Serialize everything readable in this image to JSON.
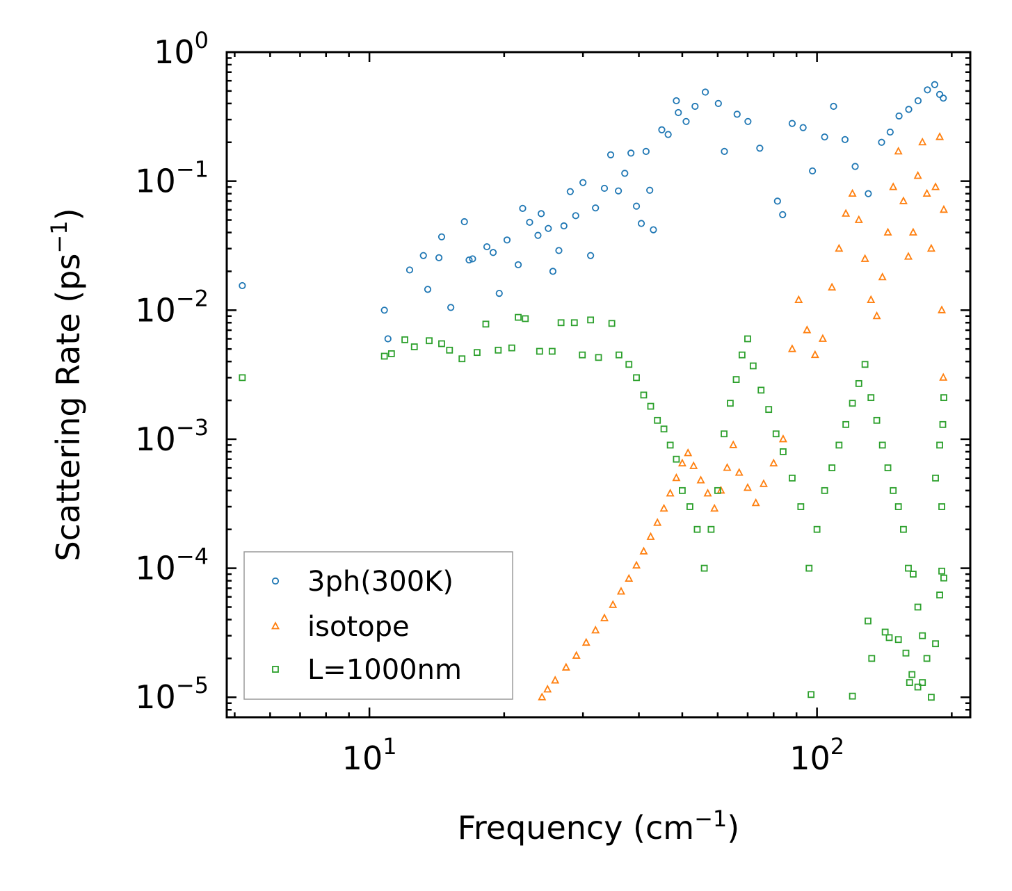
{
  "chart_data": {
    "type": "scatter",
    "xscale": "log",
    "yscale": "log",
    "xlim": [
      4.8,
      220
    ],
    "ylim": [
      7e-06,
      1.0
    ],
    "xlabel": {
      "base": "Frequency (cm",
      "sup": "−1",
      "tail": ")"
    },
    "ylabel": {
      "base": "Scattering Rate (ps",
      "sup": "−1",
      "tail": ")"
    },
    "x_ticks": [
      {
        "value": 10,
        "base": "10",
        "exp": "1"
      },
      {
        "value": 100,
        "base": "10",
        "exp": "2"
      }
    ],
    "y_ticks": [
      {
        "value": 1,
        "base": "10",
        "exp": "0"
      },
      {
        "value": 0.1,
        "base": "10",
        "exp": "−1"
      },
      {
        "value": 0.01,
        "base": "10",
        "exp": "−2"
      },
      {
        "value": 0.001,
        "base": "10",
        "exp": "−3"
      },
      {
        "value": 0.0001,
        "base": "10",
        "exp": "−4"
      },
      {
        "value": 1e-05,
        "base": "10",
        "exp": "−5"
      }
    ],
    "legend_position": "lower-left",
    "series": [
      {
        "name": "3ph(300K)",
        "marker": "circle",
        "color": "#1f77b4",
        "points": [
          [
            5.2,
            0.0155
          ],
          [
            10.8,
            0.01
          ],
          [
            11.0,
            0.006
          ],
          [
            12.3,
            0.0205
          ],
          [
            13.2,
            0.0265
          ],
          [
            13.5,
            0.0145
          ],
          [
            14.3,
            0.0255
          ],
          [
            14.5,
            0.037
          ],
          [
            15.2,
            0.0105
          ],
          [
            16.3,
            0.0485
          ],
          [
            16.7,
            0.0245
          ],
          [
            17.0,
            0.025
          ],
          [
            18.3,
            0.031
          ],
          [
            18.9,
            0.028
          ],
          [
            19.5,
            0.0135
          ],
          [
            20.3,
            0.035
          ],
          [
            21.5,
            0.0225
          ],
          [
            22.0,
            0.0615
          ],
          [
            22.8,
            0.048
          ],
          [
            23.8,
            0.038
          ],
          [
            24.2,
            0.056
          ],
          [
            25.1,
            0.043
          ],
          [
            25.7,
            0.02
          ],
          [
            26.5,
            0.029
          ],
          [
            27.2,
            0.045
          ],
          [
            28.1,
            0.083
          ],
          [
            28.9,
            0.054
          ],
          [
            30.0,
            0.0975
          ],
          [
            31.2,
            0.0265
          ],
          [
            32.0,
            0.062
          ],
          [
            33.5,
            0.088
          ],
          [
            34.6,
            0.16
          ],
          [
            36.0,
            0.084
          ],
          [
            37.2,
            0.115
          ],
          [
            38.4,
            0.165
          ],
          [
            39.5,
            0.064
          ],
          [
            40.5,
            0.047
          ],
          [
            41.5,
            0.17
          ],
          [
            42.3,
            0.085
          ],
          [
            43.1,
            0.042
          ],
          [
            45.0,
            0.25
          ],
          [
            46.5,
            0.23
          ],
          [
            48.5,
            0.42
          ],
          [
            49.0,
            0.34
          ],
          [
            51.0,
            0.29
          ],
          [
            53.4,
            0.38
          ],
          [
            56.3,
            0.49
          ],
          [
            60.2,
            0.4
          ],
          [
            62.1,
            0.17
          ],
          [
            66.3,
            0.33
          ],
          [
            70.1,
            0.29
          ],
          [
            74.5,
            0.18
          ],
          [
            81.6,
            0.07
          ],
          [
            83.8,
            0.055
          ],
          [
            88.0,
            0.28
          ],
          [
            93.1,
            0.26
          ],
          [
            97.7,
            0.12
          ],
          [
            104.0,
            0.22
          ],
          [
            108.9,
            0.38
          ],
          [
            115.5,
            0.21
          ],
          [
            121.7,
            0.13
          ],
          [
            130.2,
            0.08
          ],
          [
            139.4,
            0.2
          ],
          [
            145.7,
            0.24
          ],
          [
            152.5,
            0.32
          ],
          [
            160.3,
            0.36
          ],
          [
            168.2,
            0.42
          ],
          [
            176.5,
            0.51
          ],
          [
            183.2,
            0.56
          ],
          [
            188.0,
            0.47
          ],
          [
            191.5,
            0.44
          ]
        ]
      },
      {
        "name": "isotope",
        "marker": "triangle",
        "color": "#ff7f0e",
        "points": [
          [
            24.3,
            1e-05
          ],
          [
            25.0,
            1.15e-05
          ],
          [
            26.0,
            1.35e-05
          ],
          [
            27.5,
            1.7e-05
          ],
          [
            29.0,
            2.1e-05
          ],
          [
            30.5,
            2.65e-05
          ],
          [
            32.0,
            3.3e-05
          ],
          [
            33.5,
            4.1e-05
          ],
          [
            35.0,
            5.2e-05
          ],
          [
            36.5,
            6.6e-05
          ],
          [
            38.0,
            8.3e-05
          ],
          [
            39.5,
            0.000105
          ],
          [
            41.0,
            0.000135
          ],
          [
            42.5,
            0.000175
          ],
          [
            44.0,
            0.000225
          ],
          [
            45.5,
            0.00029
          ],
          [
            47.0,
            0.00038
          ],
          [
            48.5,
            0.0005
          ],
          [
            50.0,
            0.00065
          ],
          [
            51.5,
            0.00078
          ],
          [
            53.0,
            0.00062
          ],
          [
            55.0,
            0.00048
          ],
          [
            57.0,
            0.00038
          ],
          [
            59.0,
            0.00029
          ],
          [
            61.0,
            0.0004
          ],
          [
            63.0,
            0.0006
          ],
          [
            65.0,
            0.0009
          ],
          [
            67.0,
            0.00055
          ],
          [
            70.0,
            0.00042
          ],
          [
            73.0,
            0.00032
          ],
          [
            76.0,
            0.00045
          ],
          [
            80.0,
            0.00065
          ],
          [
            84.0,
            0.001
          ],
          [
            88.0,
            0.005
          ],
          [
            91.0,
            0.012
          ],
          [
            95.0,
            0.007
          ],
          [
            99.0,
            0.0045
          ],
          [
            103.0,
            0.006
          ],
          [
            108.0,
            0.015
          ],
          [
            112.0,
            0.03
          ],
          [
            116.0,
            0.056
          ],
          [
            120.0,
            0.08
          ],
          [
            124.0,
            0.05
          ],
          [
            128.0,
            0.025
          ],
          [
            132.0,
            0.012
          ],
          [
            136.0,
            0.009
          ],
          [
            140.0,
            0.018
          ],
          [
            144.0,
            0.04
          ],
          [
            148.0,
            0.09
          ],
          [
            152.0,
            0.17
          ],
          [
            156.0,
            0.07
          ],
          [
            160.0,
            0.026
          ],
          [
            164.0,
            0.04
          ],
          [
            168.0,
            0.11
          ],
          [
            172.0,
            0.2
          ],
          [
            176.0,
            0.08
          ],
          [
            180.0,
            0.03
          ],
          [
            184.0,
            0.09
          ],
          [
            188.0,
            0.22
          ],
          [
            190.0,
            0.01
          ],
          [
            191.5,
            0.003
          ],
          [
            192.0,
            0.06
          ]
        ]
      },
      {
        "name": "L=1000nm",
        "marker": "square",
        "color": "#2ca02c",
        "points": [
          [
            5.2,
            0.003
          ],
          [
            10.8,
            0.0044
          ],
          [
            11.2,
            0.0046
          ],
          [
            12.0,
            0.0059
          ],
          [
            12.6,
            0.0052
          ],
          [
            13.6,
            0.0058
          ],
          [
            14.5,
            0.0055
          ],
          [
            15.1,
            0.0049
          ],
          [
            16.1,
            0.0042
          ],
          [
            17.4,
            0.0047
          ],
          [
            18.2,
            0.0078
          ],
          [
            19.4,
            0.0049
          ],
          [
            20.8,
            0.0051
          ],
          [
            21.5,
            0.0088
          ],
          [
            22.3,
            0.0086
          ],
          [
            24.0,
            0.0048
          ],
          [
            25.6,
            0.0048
          ],
          [
            26.8,
            0.008
          ],
          [
            28.7,
            0.008
          ],
          [
            29.9,
            0.0045
          ],
          [
            31.2,
            0.0084
          ],
          [
            32.5,
            0.0043
          ],
          [
            34.8,
            0.0079
          ],
          [
            36.1,
            0.0045
          ],
          [
            38.0,
            0.0038
          ],
          [
            39.5,
            0.003
          ],
          [
            41.0,
            0.0022
          ],
          [
            42.5,
            0.0018
          ],
          [
            44.0,
            0.0014
          ],
          [
            45.5,
            0.0012
          ],
          [
            47.0,
            0.0009
          ],
          [
            48.5,
            0.0007
          ],
          [
            50.0,
            0.0004
          ],
          [
            52.0,
            0.0003
          ],
          [
            54.0,
            0.0002
          ],
          [
            56.0,
            0.0001
          ],
          [
            58.0,
            0.0002
          ],
          [
            60.0,
            0.0004
          ],
          [
            62.0,
            0.0011
          ],
          [
            64.0,
            0.0019
          ],
          [
            66.0,
            0.0029
          ],
          [
            68.0,
            0.0045
          ],
          [
            70.0,
            0.006
          ],
          [
            72.0,
            0.0037
          ],
          [
            75.0,
            0.0024
          ],
          [
            78.0,
            0.0017
          ],
          [
            81.0,
            0.0011
          ],
          [
            84.0,
            0.0008
          ],
          [
            88.0,
            0.0005
          ],
          [
            92.0,
            0.0003
          ],
          [
            96.0,
            0.0001
          ],
          [
            100.0,
            0.0002
          ],
          [
            104.0,
            0.0004
          ],
          [
            108.0,
            0.0006
          ],
          [
            112.0,
            0.0009
          ],
          [
            116.0,
            0.0013
          ],
          [
            120.0,
            0.0019
          ],
          [
            124.0,
            0.0027
          ],
          [
            128.0,
            0.0038
          ],
          [
            132.0,
            0.0021
          ],
          [
            136.0,
            0.0014
          ],
          [
            140.0,
            0.0009
          ],
          [
            144.0,
            0.0006
          ],
          [
            148.0,
            0.0004
          ],
          [
            152.0,
            0.0003
          ],
          [
            156.0,
            0.0002
          ],
          [
            160.0,
            0.0001
          ],
          [
            164.0,
            9e-05
          ],
          [
            168.0,
            5e-05
          ],
          [
            172.0,
            3e-05
          ],
          [
            176.0,
            2e-05
          ],
          [
            180.0,
            1e-05
          ],
          [
            184.0,
            0.0005
          ],
          [
            188.0,
            0.0009
          ],
          [
            190.0,
            0.0003
          ],
          [
            191.0,
            0.0013
          ],
          [
            192.0,
            0.0021
          ],
          [
            145.0,
            2.9e-05
          ],
          [
            158.0,
            2.2e-05
          ],
          [
            132.5,
            2e-05
          ],
          [
            163.0,
            1.5e-05
          ],
          [
            168.0,
            1.2e-05
          ],
          [
            161.0,
            1.3e-05
          ],
          [
            97.0,
            1.05e-05
          ],
          [
            120.0,
            1.02e-05
          ],
          [
            130.0,
            3.9e-05
          ],
          [
            142.0,
            3.2e-05
          ],
          [
            152.0,
            2.8e-05
          ],
          [
            172.0,
            1.3e-05
          ],
          [
            184.0,
            2.6e-05
          ],
          [
            188.0,
            6.2e-05
          ],
          [
            190.0,
            9.5e-05
          ],
          [
            192.0,
            8.4e-05
          ]
        ]
      }
    ]
  }
}
